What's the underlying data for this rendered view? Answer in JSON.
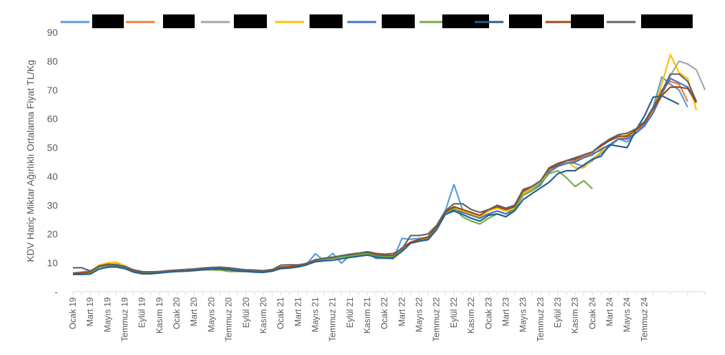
{
  "chart_data": {
    "type": "line",
    "ylabel": "KDV Hariç Miktar Ağırlıklı Ortalama Fiyat TL/Kg",
    "ylim": [
      0,
      90
    ],
    "yticks": [
      "-",
      "10",
      "20",
      "30",
      "40",
      "50",
      "60",
      "70",
      "80",
      "90"
    ],
    "grid": false,
    "legend": "top",
    "x_tick_labels": [
      "Ocak 19",
      "Mart 19",
      "Mayıs 19",
      "Temmuz 19",
      "Eylül 19",
      "Kasım 19",
      "Ocak 20",
      "Mart 20",
      "Mayıs 20",
      "Temmuz 20",
      "Eylül 20",
      "Kasım 20",
      "Ocak 21",
      "Mart 21",
      "Mayıs 21",
      "Temmuz 21",
      "Eylül 21",
      "Kasım 21",
      "Ocak 22",
      "Mart 22",
      "Mayıs 22",
      "Temmuz 22",
      "Eylül 22",
      "Kasım 22",
      "Ocak 23",
      "Mart 23",
      "Mayıs 23",
      "Temmuz 23",
      "Eylül 23",
      "Kasım 23",
      "Ocak 24",
      "Mart 24",
      "Mayıs 24",
      "Temmuz 24"
    ],
    "series": [
      {
        "color": "#5b9bd5",
        "values": [
          6.5,
          6.8,
          7.2,
          8.5,
          9.5,
          9.6,
          9.0,
          7.5,
          6.8,
          6.8,
          6.9,
          7.2,
          7.5,
          7.6,
          7.7,
          8.2,
          8.3,
          8.4,
          8.2,
          7.9,
          7.5,
          7.4,
          7.2,
          7.6,
          8.5,
          8.6,
          9.0,
          9.6,
          13.2,
          10.8,
          13.3,
          9.9,
          12.5,
          12.8,
          13.5,
          11.5,
          11.6,
          11.4,
          18.5,
          18.2,
          18.5,
          18.8,
          22.0,
          28.0,
          37.2,
          28.5,
          27.0,
          25.5,
          27.0,
          28.0,
          27.0,
          29.0,
          34.0,
          35.5,
          37.0,
          41.5,
          44.0,
          45.0,
          44.5,
          43.5,
          45.5,
          48.0,
          50.5,
          53.0,
          52.0,
          55.0,
          58.0,
          64.0,
          74.5,
          72.0,
          70.0,
          64.0
        ]
      },
      {
        "color": "#ed7d31",
        "values": [
          6.3,
          6.5,
          6.8,
          8.8,
          9.3,
          9.0,
          8.6,
          7.2,
          6.6,
          6.7,
          6.8,
          7.1,
          7.3,
          7.5,
          7.7,
          8.0,
          8.2,
          8.3,
          8.0,
          7.6,
          7.4,
          7.3,
          7.1,
          7.5,
          8.3,
          8.5,
          9.0,
          9.8,
          11.0,
          11.5,
          11.8,
          12.4,
          12.8,
          13.2,
          13.6,
          12.8,
          12.5,
          12.5,
          15.0,
          17.0,
          18.0,
          18.8,
          22.5,
          27.5,
          29.5,
          28.0,
          27.0,
          26.0,
          28.0,
          29.0,
          28.0,
          29.0,
          34.5,
          36.0,
          38.0,
          42.5,
          44.0,
          45.0,
          45.5,
          47.0,
          48.0,
          49.0,
          51.0,
          53.0,
          53.5,
          55.0,
          57.5,
          63.0,
          70.0,
          73.0,
          72.0,
          66.0
        ]
      },
      {
        "color": "#a5a5a5",
        "values": [
          6.4,
          6.6,
          7.0,
          8.8,
          9.4,
          9.2,
          8.6,
          7.3,
          6.7,
          6.8,
          6.9,
          7.2,
          7.4,
          7.6,
          7.8,
          8.1,
          8.3,
          8.4,
          8.1,
          7.7,
          7.5,
          7.4,
          7.2,
          7.6,
          8.4,
          8.6,
          9.0,
          9.7,
          11.0,
          11.4,
          11.7,
          12.3,
          12.7,
          13.1,
          13.5,
          12.7,
          12.4,
          12.4,
          14.8,
          17.0,
          18.0,
          18.7,
          22.3,
          27.3,
          29.0,
          28.0,
          27.0,
          26.0,
          28.0,
          29.0,
          28.0,
          29.0,
          34.0,
          36.0,
          38.0,
          43.0,
          44.5,
          45.0,
          46.0,
          47.5,
          48.5,
          51.0,
          52.5,
          53.5,
          54.0,
          56.0,
          58.0,
          62.0,
          68.0,
          75.0,
          80.0,
          79.0,
          77.0,
          70.0
        ]
      },
      {
        "color": "#ffc000",
        "values": [
          6.3,
          6.5,
          7.0,
          9.2,
          10.0,
          10.3,
          9.0,
          7.3,
          6.6,
          6.7,
          6.8,
          7.1,
          7.3,
          7.5,
          7.7,
          8.0,
          8.2,
          8.3,
          8.0,
          7.6,
          7.4,
          7.3,
          7.1,
          7.5,
          8.3,
          8.5,
          9.0,
          9.8,
          11.0,
          11.5,
          11.8,
          12.4,
          12.8,
          13.2,
          13.6,
          12.8,
          12.5,
          12.5,
          15.0,
          17.0,
          18.0,
          18.8,
          22.5,
          27.5,
          29.0,
          28.0,
          27.0,
          26.0,
          28.0,
          29.0,
          28.0,
          29.0,
          34.0,
          35.5,
          37.5,
          42.0,
          44.5,
          45.5,
          43.0,
          43.0,
          46.0,
          48.5,
          51.0,
          53.0,
          54.5,
          56.0,
          58.5,
          63.0,
          72.0,
          82.3,
          76.0,
          74.0,
          63.0
        ]
      },
      {
        "color": "#4472c4",
        "values": [
          6.2,
          6.3,
          6.5,
          8.5,
          9.0,
          9.0,
          8.5,
          7.2,
          6.5,
          6.6,
          6.7,
          7.0,
          7.2,
          7.4,
          7.6,
          7.9,
          8.1,
          8.2,
          7.9,
          7.5,
          7.3,
          7.2,
          7.0,
          7.4,
          8.2,
          8.4,
          8.9,
          9.6,
          10.8,
          11.2,
          11.5,
          12.1,
          12.5,
          12.9,
          13.3,
          12.5,
          12.2,
          12.2,
          14.6,
          16.8,
          17.8,
          18.5,
          22.0,
          27.0,
          28.5,
          27.5,
          26.5,
          25.5,
          27.0,
          28.0,
          27.0,
          28.5,
          33.5,
          35.0,
          37.0,
          41.5,
          43.5,
          44.5,
          45.0,
          46.5,
          47.5,
          49.5,
          51.0,
          53.0,
          53.0,
          55.0,
          57.5,
          62.0,
          69.0,
          74.0,
          72.5,
          71.0,
          66.0
        ]
      },
      {
        "color": "#70ad47",
        "values": [
          6.2,
          6.3,
          6.6,
          8.6,
          9.1,
          9.0,
          8.4,
          7.0,
          6.4,
          6.4,
          6.5,
          6.8,
          7.0,
          7.2,
          7.4,
          7.6,
          7.6,
          7.5,
          7.0,
          7.0,
          7.0,
          6.8,
          6.7,
          7.3,
          8.2,
          8.5,
          9.0,
          9.7,
          10.8,
          11.2,
          11.5,
          12.0,
          12.4,
          12.8,
          13.2,
          12.5,
          12.2,
          12.2,
          14.5,
          17.0,
          18.0,
          18.7,
          22.0,
          27.0,
          29.0,
          26.0,
          24.5,
          23.5,
          25.5,
          27.0,
          26.0,
          28.5,
          33.5,
          35.0,
          37.5,
          41.0,
          42.0,
          39.5,
          36.5,
          38.5,
          35.7
        ]
      },
      {
        "color": "#255e91",
        "values": [
          6.0,
          6.0,
          6.1,
          7.8,
          8.5,
          8.6,
          8.0,
          6.8,
          6.2,
          6.2,
          6.5,
          6.8,
          7.0,
          7.1,
          7.3,
          7.6,
          7.8,
          7.9,
          7.6,
          7.2,
          7.0,
          6.8,
          6.7,
          7.1,
          8.0,
          8.2,
          8.6,
          9.3,
          10.4,
          10.7,
          10.9,
          11.4,
          11.9,
          12.3,
          12.7,
          12.0,
          11.7,
          11.7,
          14.0,
          16.8,
          17.5,
          18.0,
          21.5,
          26.8,
          28.0,
          26.8,
          25.5,
          24.5,
          26.5,
          27.0,
          26.0,
          28.0,
          32.0,
          34.0,
          36.0,
          38.0,
          41.0,
          42.0,
          42.0,
          44.0,
          46.0,
          47.0,
          51.0,
          50.5,
          50.0,
          56.0,
          61.0,
          67.5,
          68.0,
          66.5,
          65.0
        ]
      },
      {
        "color": "#9e480e",
        "values": [
          6.4,
          6.6,
          6.9,
          8.9,
          9.5,
          9.3,
          8.7,
          7.4,
          6.8,
          6.9,
          7.0,
          7.3,
          7.5,
          7.7,
          7.9,
          8.2,
          8.4,
          8.5,
          8.2,
          7.8,
          7.6,
          7.5,
          7.3,
          7.7,
          8.5,
          8.7,
          9.1,
          9.9,
          11.1,
          11.6,
          11.9,
          12.5,
          12.9,
          13.3,
          13.7,
          12.9,
          12.6,
          12.6,
          15.2,
          17.2,
          18.2,
          19.0,
          22.7,
          27.7,
          29.5,
          28.5,
          27.5,
          26.5,
          28.5,
          29.5,
          28.5,
          29.5,
          35.0,
          36.5,
          38.5,
          43.0,
          44.5,
          45.5,
          46.0,
          47.5,
          48.5,
          50.5,
          52.5,
          54.0,
          54.0,
          56.0,
          58.5,
          63.5,
          68.0,
          71.0,
          71.0,
          70.5,
          65.5
        ]
      },
      {
        "color": "#636363",
        "values": [
          8.3,
          8.3,
          7.2,
          8.8,
          9.3,
          9.2,
          8.8,
          7.6,
          7.0,
          6.8,
          7.0,
          7.2,
          7.5,
          7.6,
          7.8,
          8.2,
          8.4,
          8.5,
          8.3,
          7.9,
          7.6,
          7.5,
          7.2,
          7.6,
          9.2,
          9.3,
          9.3,
          9.7,
          10.9,
          11.6,
          12.0,
          12.5,
          13.0,
          13.4,
          13.9,
          13.3,
          13.0,
          13.3,
          14.8,
          19.5,
          19.5,
          20.0,
          23.0,
          28.0,
          30.5,
          30.5,
          28.5,
          27.5,
          28.5,
          30.0,
          29.0,
          30.0,
          35.5,
          36.5,
          38.5,
          42.5,
          44.0,
          45.5,
          46.5,
          47.5,
          48.5,
          51.0,
          53.0,
          54.5,
          55.0,
          56.5,
          59.0,
          64.0,
          69.5,
          75.5,
          75.5,
          73.0,
          66.0
        ]
      }
    ]
  }
}
